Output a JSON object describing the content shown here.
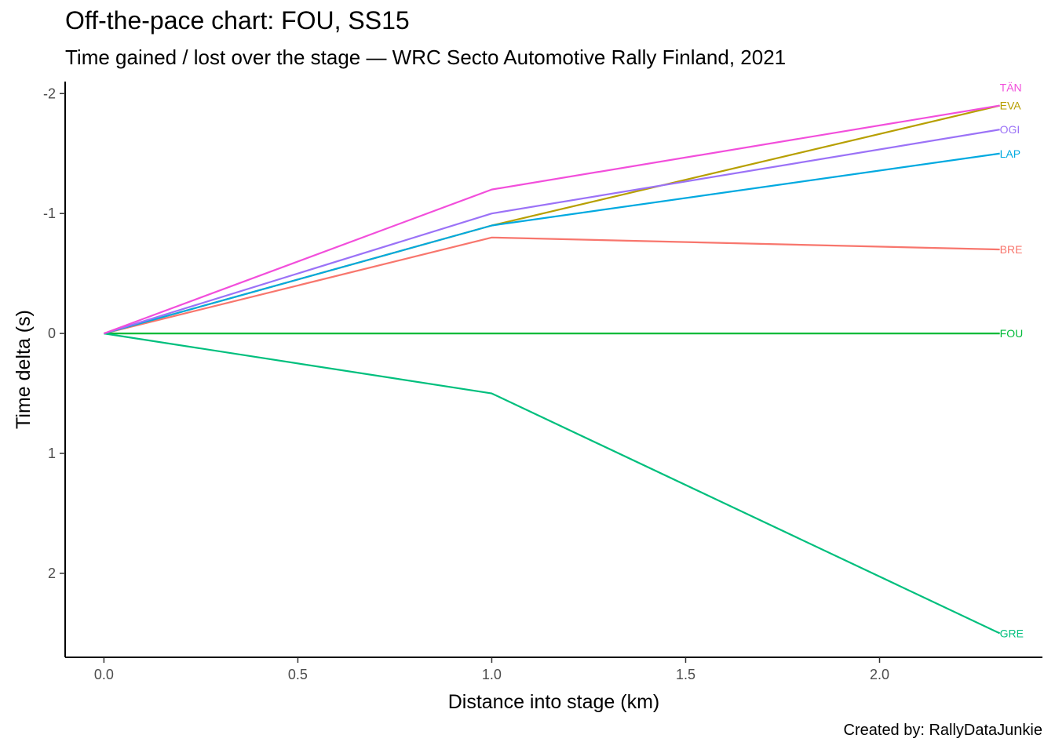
{
  "header": {
    "title": "Off-the-pace chart: FOU, SS15",
    "subtitle": "Time gained / lost over the stage — WRC Secto Automotive Rally Finland, 2021"
  },
  "caption": "Created by: RallyDataJunkie",
  "chart_data": {
    "type": "line",
    "title": "Off-the-pace chart: FOU, SS15",
    "subtitle": "Time gained / lost over the stage — WRC Secto Automotive Rally Finland, 2021",
    "xlabel": "Distance into stage (km)",
    "ylabel": "Time delta (s)",
    "x": [
      0,
      1.0,
      2.31
    ],
    "xlim": [
      -0.1,
      2.42
    ],
    "ylim": [
      -2.1,
      2.7
    ],
    "y_reversed": true,
    "x_ticks": [
      0.0,
      0.5,
      1.0,
      1.5,
      2.0
    ],
    "x_tick_labels": [
      "0.0",
      "0.5",
      "1.0",
      "1.5",
      "2.0"
    ],
    "y_ticks": [
      -2,
      -1,
      0,
      1,
      2
    ],
    "y_tick_labels": [
      "-2",
      "-1",
      "0",
      "1",
      "2"
    ],
    "grid": false,
    "legend": "none (direct labels at line ends)",
    "series": [
      {
        "name": "BRE",
        "values": [
          0,
          -0.8,
          -0.7
        ],
        "color": "#F8766D"
      },
      {
        "name": "EVA",
        "values": [
          0,
          -0.9,
          -1.9
        ],
        "color": "#B79F00"
      },
      {
        "name": "FOU",
        "values": [
          0,
          0,
          0
        ],
        "color": "#00BA38"
      },
      {
        "name": "GRE",
        "values": [
          0,
          0.5,
          2.5
        ],
        "color": "#00BF7D"
      },
      {
        "name": "LAP",
        "values": [
          0,
          -0.9,
          -1.5
        ],
        "color": "#00A9E0"
      },
      {
        "name": "OGI",
        "values": [
          0,
          -1.0,
          -1.7
        ],
        "color": "#9B72F7"
      },
      {
        "name": "TÄN",
        "values": [
          0,
          -1.2,
          -1.9
        ],
        "color": "#F24EDB"
      }
    ],
    "end_labels": [
      {
        "name": "TÄN",
        "y": -2.05,
        "color": "#F24EDB"
      },
      {
        "name": "EVA",
        "y": -1.9,
        "color": "#B79F00"
      },
      {
        "name": "OGI",
        "y": -1.7,
        "color": "#9B72F7"
      },
      {
        "name": "LAP",
        "y": -1.5,
        "color": "#00A9E0"
      },
      {
        "name": "BRE",
        "y": -0.7,
        "color": "#F8766D"
      },
      {
        "name": "FOU",
        "y": 0,
        "color": "#00BA38"
      },
      {
        "name": "GRE",
        "y": 2.5,
        "color": "#00BF7D"
      }
    ]
  }
}
